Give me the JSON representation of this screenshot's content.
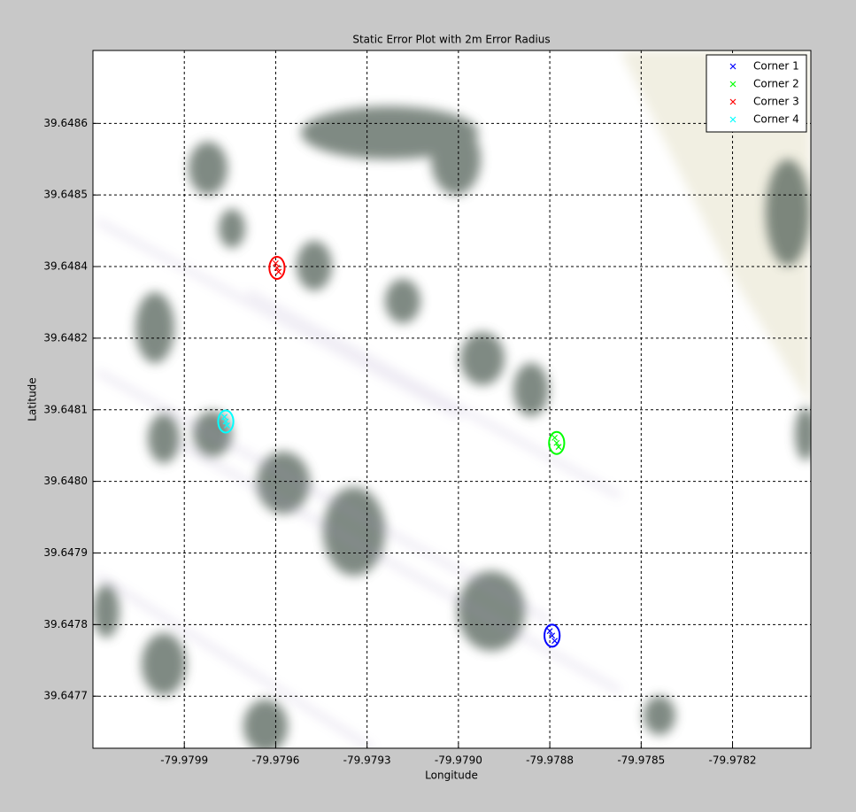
{
  "chart_data": {
    "type": "scatter",
    "title": "Static Error Plot with 2m Error Radius",
    "xlabel": "Longitude",
    "ylabel": "Latitude",
    "xlim": [
      -79.98016,
      -79.97796
    ],
    "ylim": [
      39.647615,
      39.648687
    ],
    "xticks": [
      {
        "value": -79.97988,
        "label": "-79.9799"
      },
      {
        "value": -79.9796,
        "label": "-79.9796"
      },
      {
        "value": -79.97932,
        "label": "-79.9793"
      },
      {
        "value": -79.97904,
        "label": "-79.9790"
      },
      {
        "value": -79.97876,
        "label": "-79.9788"
      },
      {
        "value": -79.97848,
        "label": "-79.9785"
      },
      {
        "value": -79.9782,
        "label": "-79.9782"
      }
    ],
    "yticks": [
      {
        "value": 39.647695,
        "label": "39.6477"
      },
      {
        "value": 39.647805,
        "label": "39.6478"
      },
      {
        "value": 39.647915,
        "label": "39.6479"
      },
      {
        "value": 39.648025,
        "label": "39.6480"
      },
      {
        "value": 39.648135,
        "label": "39.6481"
      },
      {
        "value": 39.648245,
        "label": "39.6482"
      },
      {
        "value": 39.648355,
        "label": "39.6484"
      },
      {
        "value": 39.648465,
        "label": "39.6485"
      },
      {
        "value": 39.648575,
        "label": "39.6486"
      }
    ],
    "grid": true,
    "legend_loc": "northeast",
    "series": [
      {
        "name": "Corner 1",
        "color": "#0000ff",
        "x": [
          -79.978753,
          -79.97876,
          -79.978745
        ],
        "values": [
          39.647788,
          39.647795,
          39.64778
        ]
      },
      {
        "name": "Corner 2",
        "color": "#00ff00",
        "x": [
          -79.978739,
          -79.978745,
          -79.978733
        ],
        "values": [
          39.648084,
          39.648092,
          39.648078
        ]
      },
      {
        "name": "Corner 3",
        "color": "#ff0000",
        "x": [
          -79.979596,
          -79.9796,
          -79.979591
        ],
        "values": [
          39.648353,
          39.64836,
          39.648347
        ]
      },
      {
        "name": "Corner 4",
        "color": "#00ffff",
        "x": [
          -79.979753,
          -79.979757,
          -79.979749
        ],
        "values": [
          39.648117,
          39.648124,
          39.648111
        ]
      }
    ]
  }
}
